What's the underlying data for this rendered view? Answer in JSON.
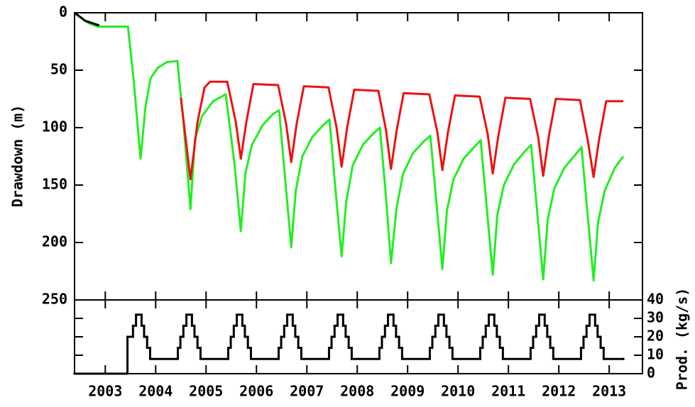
{
  "chart_data": [
    {
      "type": "line",
      "ylabel": "Drawdown (m)",
      "xlim": [
        2002.39,
        2013.66
      ],
      "ylim": [
        0,
        250
      ],
      "y_inverted": true,
      "yticks": [
        0,
        50,
        100,
        150,
        200,
        250
      ],
      "series": [
        {
          "color": "#22ee22",
          "x": [
            2002.39,
            2002.67,
            2002.84,
            2003.45,
            2003.56,
            2003.7,
            2003.8,
            2003.9,
            2004.04,
            2004.22,
            2004.43,
            2004.55,
            2004.69,
            2004.78,
            2004.92,
            2005.14,
            2005.39,
            2005.56,
            2005.69,
            2005.78,
            2005.91,
            2006.12,
            2006.33,
            2006.45,
            2006.56,
            2006.69,
            2006.78,
            2006.91,
            2007.11,
            2007.32,
            2007.45,
            2007.56,
            2007.69,
            2007.78,
            2007.91,
            2008.11,
            2008.32,
            2008.45,
            2008.56,
            2008.67,
            2008.78,
            2008.91,
            2009.11,
            2009.32,
            2009.45,
            2009.56,
            2009.69,
            2009.78,
            2009.91,
            2010.11,
            2010.32,
            2010.45,
            2010.56,
            2010.69,
            2010.78,
            2010.91,
            2011.11,
            2011.32,
            2011.45,
            2011.56,
            2011.69,
            2011.78,
            2011.91,
            2012.11,
            2012.32,
            2012.45,
            2012.56,
            2012.69,
            2012.78,
            2012.91,
            2013.11,
            2013.28
          ],
          "values": [
            0,
            9,
            12,
            12,
            57,
            127,
            81,
            57,
            48,
            43,
            42,
            95,
            171,
            110,
            90,
            77,
            71,
            130,
            190,
            140,
            115,
            98,
            88,
            85,
            140,
            204,
            155,
            125,
            108,
            98,
            93,
            150,
            212,
            165,
            133,
            115,
            105,
            100,
            155,
            218,
            170,
            140,
            122,
            112,
            107,
            160,
            223,
            172,
            145,
            127,
            117,
            111,
            165,
            228,
            176,
            150,
            132,
            121,
            115,
            168,
            232,
            180,
            153,
            135,
            124,
            117,
            170,
            233,
            182,
            155,
            135,
            125
          ]
        },
        {
          "color": "#ee1111",
          "x": [
            2004.5,
            2004.69,
            2004.83,
            2004.97,
            2005.08,
            2005.42,
            2005.59,
            2005.69,
            2005.8,
            2005.94,
            2006.43,
            2006.59,
            2006.69,
            2006.8,
            2006.94,
            2007.43,
            2007.59,
            2007.69,
            2007.8,
            2007.94,
            2008.42,
            2008.57,
            2008.67,
            2008.78,
            2008.92,
            2009.43,
            2009.59,
            2009.69,
            2009.8,
            2009.94,
            2010.43,
            2010.59,
            2010.69,
            2010.8,
            2010.94,
            2011.43,
            2011.59,
            2011.69,
            2011.8,
            2011.94,
            2012.42,
            2012.57,
            2012.69,
            2012.8,
            2012.94,
            2013.28
          ],
          "values": [
            74,
            145,
            95,
            65,
            60,
            60,
            95,
            127,
            95,
            62,
            63,
            97,
            130,
            96,
            64,
            65,
            100,
            134,
            100,
            67,
            68,
            102,
            136,
            103,
            70,
            71,
            104,
            137,
            104,
            72,
            73,
            106,
            140,
            107,
            74,
            75,
            108,
            142,
            108,
            75,
            76,
            110,
            143,
            110,
            77,
            77
          ]
        },
        {
          "color": "#000000",
          "x": [
            2002.39,
            2002.6,
            2002.88
          ],
          "values": [
            0,
            7,
            11
          ]
        }
      ]
    },
    {
      "type": "step",
      "ylabel": "Prod. (kg/s)",
      "y_axis": "right",
      "xlim": [
        2002.39,
        2013.66
      ],
      "ylim": [
        0,
        40
      ],
      "yticks": [
        0,
        10,
        20,
        30,
        40
      ],
      "xticks": [
        2003,
        2004,
        2005,
        2006,
        2007,
        2008,
        2009,
        2010,
        2011,
        2012,
        2013
      ],
      "series": [
        {
          "color": "#000000",
          "x": [
            2002.39,
            2003.44,
            2003.55,
            2003.61,
            2003.72,
            2003.77,
            2003.83,
            2003.89,
            2004.44,
            2004.49,
            2004.55,
            2004.61,
            2004.72,
            2004.77,
            2004.83,
            2004.89,
            2005.44,
            2005.49,
            2005.55,
            2005.61,
            2005.72,
            2005.77,
            2005.83,
            2005.89,
            2006.44,
            2006.49,
            2006.55,
            2006.61,
            2006.72,
            2006.77,
            2006.83,
            2006.89,
            2007.44,
            2007.49,
            2007.55,
            2007.61,
            2007.72,
            2007.77,
            2007.83,
            2007.89,
            2008.44,
            2008.49,
            2008.55,
            2008.61,
            2008.72,
            2008.77,
            2008.83,
            2008.89,
            2009.44,
            2009.49,
            2009.55,
            2009.61,
            2009.72,
            2009.77,
            2009.83,
            2009.89,
            2010.44,
            2010.49,
            2010.55,
            2010.61,
            2010.72,
            2010.77,
            2010.83,
            2010.89,
            2011.44,
            2011.49,
            2011.55,
            2011.61,
            2011.72,
            2011.77,
            2011.83,
            2011.89,
            2012.44,
            2012.49,
            2012.55,
            2012.61,
            2012.72,
            2012.77,
            2012.83,
            2012.89,
            2013.28
          ],
          "values": [
            0,
            20,
            26,
            32,
            26,
            20,
            14,
            8,
            14,
            20,
            26,
            32,
            26,
            20,
            14,
            8,
            14,
            20,
            26,
            32,
            26,
            20,
            14,
            8,
            14,
            20,
            26,
            32,
            26,
            20,
            14,
            8,
            14,
            20,
            26,
            32,
            26,
            20,
            14,
            8,
            14,
            20,
            26,
            32,
            26,
            20,
            14,
            8,
            14,
            20,
            26,
            32,
            26,
            20,
            14,
            8,
            14,
            20,
            26,
            32,
            26,
            20,
            14,
            8,
            14,
            20,
            26,
            32,
            26,
            20,
            14,
            8,
            14,
            20,
            26,
            32,
            26,
            20,
            14,
            8,
            8
          ]
        }
      ]
    }
  ]
}
